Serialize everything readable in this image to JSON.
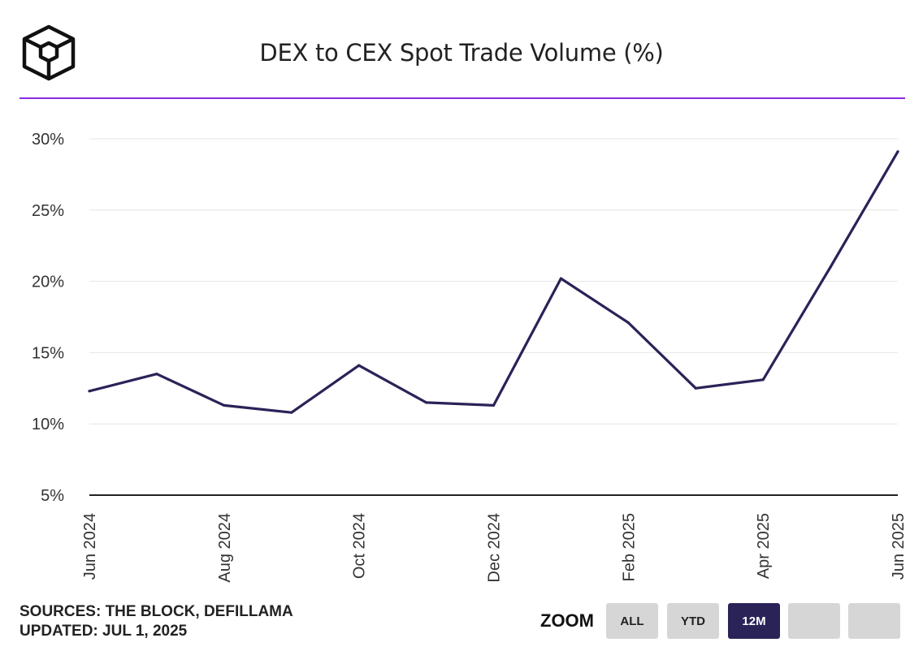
{
  "title": "DEX to CEX Spot Trade Volume (%)",
  "footer": {
    "sources": "SOURCES: THE BLOCK, DEFILLAMA",
    "updated": "UPDATED: JUL 1, 2025"
  },
  "zoom": {
    "label": "ZOOM",
    "buttons": [
      {
        "label": "ALL",
        "active": false
      },
      {
        "label": "YTD",
        "active": false
      },
      {
        "label": "12M",
        "active": true
      },
      {
        "label": "",
        "active": false
      },
      {
        "label": "",
        "active": false
      }
    ]
  },
  "colors": {
    "line": "#2a2358",
    "accent_rule": "#8a2be2",
    "grid": "#e6e6e6",
    "axis": "#222222"
  },
  "chart_data": {
    "type": "line",
    "title": "DEX to CEX Spot Trade Volume (%)",
    "xlabel": "",
    "ylabel": "",
    "ylim": [
      5,
      30
    ],
    "y_ticks": [
      5,
      10,
      15,
      20,
      25,
      30
    ],
    "y_tick_labels": [
      "5%",
      "10%",
      "15%",
      "20%",
      "25%",
      "30%"
    ],
    "x": [
      "2024-06",
      "2024-07",
      "2024-08",
      "2024-09",
      "2024-10",
      "2024-11",
      "2024-12",
      "2025-01",
      "2025-02",
      "2025-03",
      "2025-04",
      "2025-05",
      "2025-06"
    ],
    "x_tick_labels": [
      "Jun 2024",
      "",
      "Aug 2024",
      "",
      "Oct 2024",
      "",
      "Dec 2024",
      "",
      "Feb 2025",
      "",
      "Apr 2025",
      "",
      "Jun 2025"
    ],
    "series": [
      {
        "values": [
          12.3,
          13.5,
          11.3,
          10.8,
          14.1,
          11.5,
          11.3,
          20.2,
          17.1,
          12.5,
          13.1,
          21.0,
          29.1
        ]
      }
    ],
    "grid": true,
    "legend": "none"
  }
}
